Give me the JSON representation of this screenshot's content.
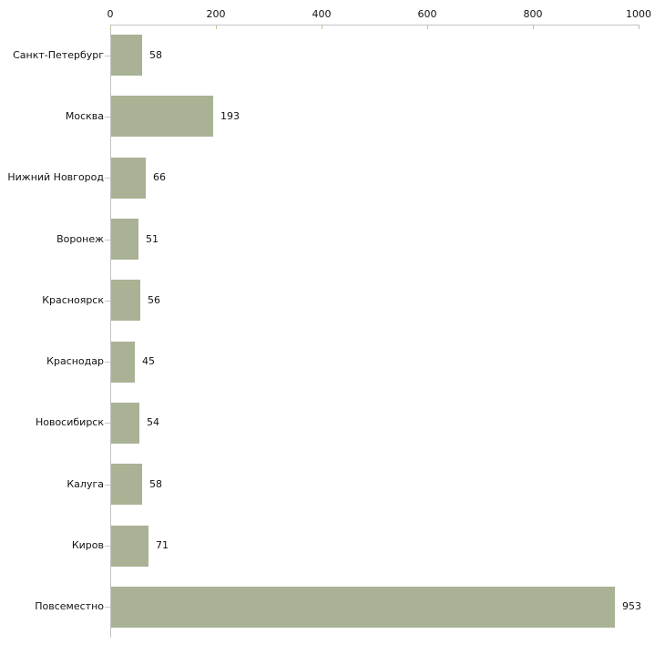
{
  "chart_data": {
    "type": "bar",
    "orientation": "horizontal",
    "title": "",
    "xlabel": "",
    "ylabel": "",
    "categories": [
      "Санкт-Петербург",
      "Москва",
      "Нижний Новгород",
      "Воронеж",
      "Красноярск",
      "Краснодар",
      "Новосибирск",
      "Калуга",
      "Киров",
      "Повсеместно"
    ],
    "values": [
      58,
      193,
      66,
      51,
      56,
      45,
      54,
      58,
      71,
      953
    ],
    "value_labels": [
      "58",
      "193",
      "66",
      "51",
      "56",
      "45",
      "54",
      "58",
      "71",
      "953"
    ],
    "xlim": [
      0,
      1000
    ],
    "x_ticks": [
      0,
      200,
      400,
      600,
      800,
      1000
    ],
    "x_tick_labels": [
      "0",
      "200",
      "400",
      "600",
      "800",
      "1000"
    ],
    "axis_position": "top",
    "grid": false,
    "legend": null,
    "colors": {
      "bar_fill": "#a9b294",
      "axis_line": "#c3c3c3",
      "x_tick_mark": "#c2c29a",
      "y_tick_mark": "#c6c6c6",
      "text": "#111111",
      "background": "#ffffff"
    }
  }
}
